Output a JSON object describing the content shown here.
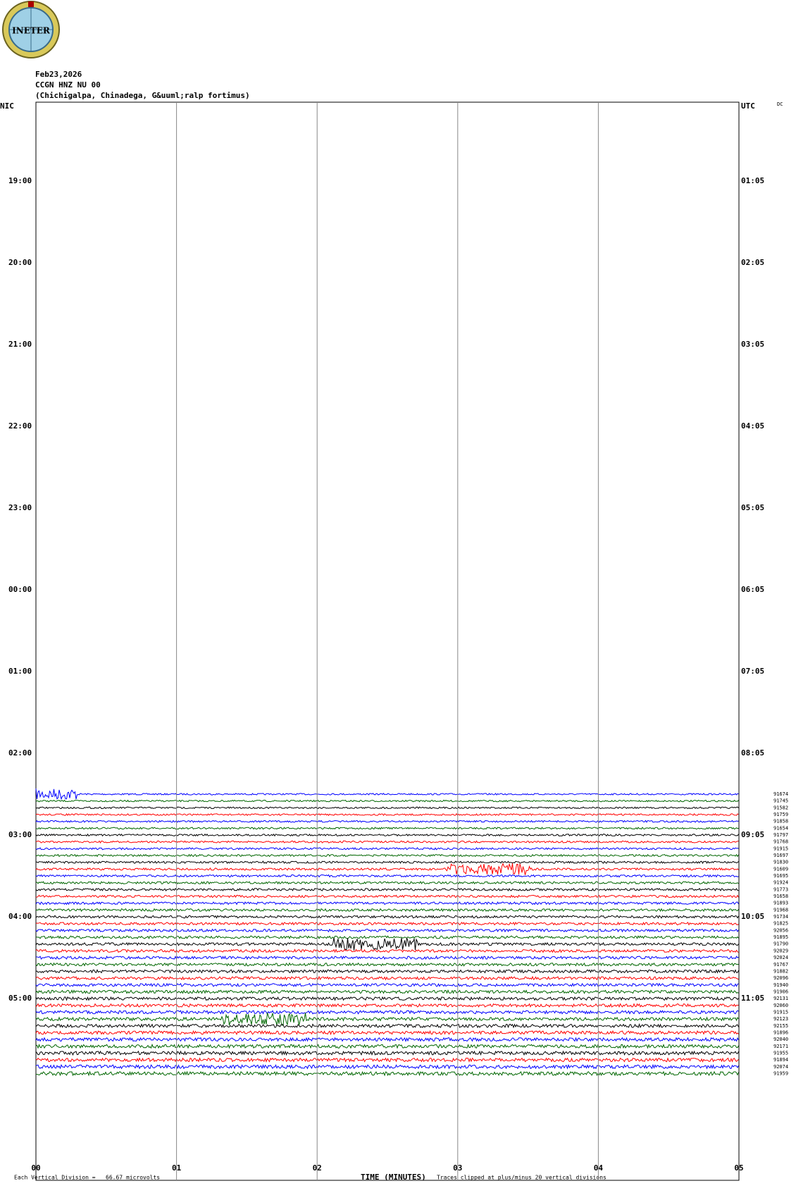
{
  "header": {
    "logo": "INETER",
    "date": "Feb23,2026",
    "station": "CCGN HNZ NU 00",
    "location": "(Chichigalpa, Chinadega, G&uuml;ralp fortimus)"
  },
  "left_axis": {
    "label": "NIC",
    "times": [
      "19:00",
      "20:00",
      "21:00",
      "22:00",
      "23:00",
      "00:00",
      "01:00",
      "02:00",
      "03:00",
      "04:00",
      "05:00"
    ]
  },
  "right_axis": {
    "label": "UTC",
    "corner": "DC",
    "times": [
      "01:05",
      "02:05",
      "03:05",
      "04:05",
      "05:05",
      "06:05",
      "07:05",
      "08:05",
      "09:05",
      "10:05",
      "11:05"
    ]
  },
  "x_axis": {
    "label": "TIME (MINUTES)",
    "ticks": [
      "00",
      "01",
      "02",
      "03",
      "04",
      "05"
    ]
  },
  "trace_counts": [
    "91674",
    "91745",
    "91582",
    "91759",
    "91858",
    "91654",
    "91797",
    "91768",
    "91915",
    "91697",
    "91830",
    "91609",
    "91695",
    "91924",
    "91773",
    "91658",
    "91893",
    "91968",
    "91734",
    "91825",
    "92056",
    "91895",
    "91790",
    "92029",
    "92024",
    "91767",
    "91882",
    "92096",
    "91940",
    "91906",
    "92131",
    "92060",
    "91915",
    "92123",
    "92155",
    "91896",
    "92040",
    "92171",
    "91955",
    "91894",
    "92074",
    "91959"
  ],
  "footer": {
    "scale": "Each Vertical Division =   66.67 microvolts",
    "clip": "Traces clipped at plus/minus 20 vertical divisions"
  }
}
